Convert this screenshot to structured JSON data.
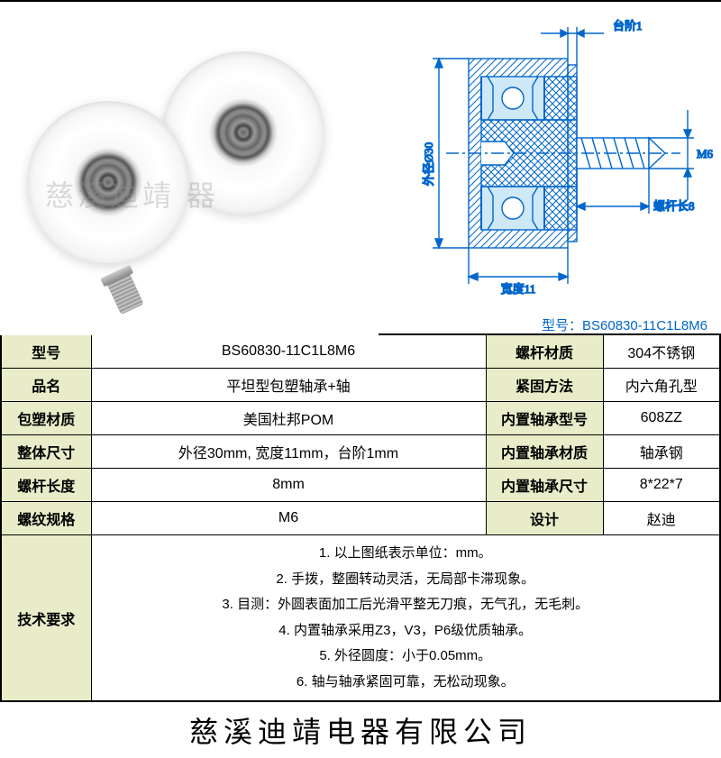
{
  "watermark_text": "慈溪迪靖    器",
  "model_label_prefix": "型号：",
  "model_number": "BS60830-11C1L8M6",
  "diagram": {
    "colors": {
      "line": "#0066cc",
      "hatch": "#0066cc",
      "fill_light": "#ffffff",
      "bearing_fill": "#cfe8f7",
      "text": "#0066cc"
    },
    "labels": {
      "step": "台阶1",
      "outer_dia": "外径Ø30",
      "width": "宽度11",
      "thread": "M6",
      "screw_len": "螺杆长8"
    },
    "dims": {
      "outer_diameter": 30,
      "width": 11,
      "step": 1,
      "thread": "M6",
      "screw_length": 8
    },
    "stroke_width": 1.4,
    "font_size": 13
  },
  "table": {
    "rows": [
      {
        "l_hdr": "型号",
        "l_val": "BS60830-11C1L8M6",
        "r_hdr": "螺杆材质",
        "r_val": "304不锈钢"
      },
      {
        "l_hdr": "品名",
        "l_val": "平坦型包塑轴承+轴",
        "r_hdr": "紧固方法",
        "r_val": "内六角孔型"
      },
      {
        "l_hdr": "包塑材质",
        "l_val": "美国杜邦POM",
        "r_hdr": "内置轴承型号",
        "r_val": "608ZZ"
      },
      {
        "l_hdr": "整体尺寸",
        "l_val": "外径30mm, 宽度11mm，台阶1mm",
        "r_hdr": "内置轴承材质",
        "r_val": "轴承钢"
      },
      {
        "l_hdr": "螺杆长度",
        "l_val": "8mm",
        "r_hdr": "内置轴承尺寸",
        "r_val": "8*22*7"
      },
      {
        "l_hdr": "螺纹规格",
        "l_val": "M6",
        "r_hdr": "设计",
        "r_val": "赵迪"
      }
    ],
    "req_hdr": "技术要求",
    "requirements": [
      "1. 以上图纸表示单位：mm。",
      "2. 手拨，整圈转动灵活，无局部卡滞现象。",
      "3. 目测：外圆表面加工后光滑平整无刀痕，无气孔，无毛刺。",
      "4. 内置轴承采用Z3，V3，P6级优质轴承。",
      "5. 外径圆度：小于0.05mm。",
      "6. 轴与轴承紧固可靠，无松动现象。"
    ]
  },
  "footer": "慈溪迪靖电器有限公司"
}
